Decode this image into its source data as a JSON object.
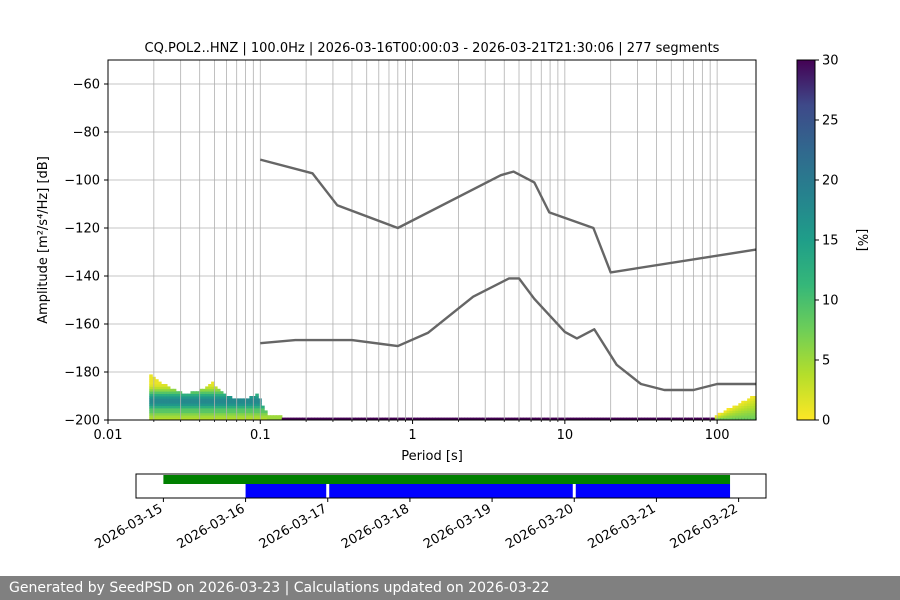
{
  "chart_data": {
    "type": "heatmap",
    "title": "CQ.POL2..HNZ | 100.0Hz | 2026-03-16T00:00:03 - 2026-03-21T21:30:06 | 277 segments",
    "xlabel": "Period [s]",
    "ylabel": "Amplitude [m²/s⁴/Hz] [dB]",
    "x_scale": "log",
    "xlim": [
      0.01,
      180
    ],
    "ylim": [
      -200,
      -50
    ],
    "x_ticks": [
      0.01,
      0.1,
      1,
      10,
      100
    ],
    "x_tick_labels": [
      "0.01",
      "0.1",
      "1",
      "10",
      "100"
    ],
    "y_ticks": [
      -200,
      -180,
      -160,
      -140,
      -120,
      -100,
      -80,
      -60
    ],
    "y_tick_labels": [
      "−200",
      "−180",
      "−160",
      "−140",
      "−120",
      "−100",
      "−80",
      "−60"
    ],
    "grid": "vertical (log-minor period lines) + horizontal at y ticks",
    "colorbar": {
      "label": "[%]",
      "range": [
        0,
        30
      ],
      "ticks": [
        0,
        5,
        10,
        15,
        20,
        25,
        30
      ],
      "colormap": "viridis_r"
    },
    "series": [
      {
        "role": "noise-model-high",
        "color": "#666666",
        "points": [
          [
            0.1,
            -91.5
          ],
          [
            0.22,
            -97.2
          ],
          [
            0.32,
            -110.5
          ],
          [
            0.8,
            -120
          ],
          [
            3.8,
            -98
          ],
          [
            4.6,
            -96.5
          ],
          [
            6.3,
            -101
          ],
          [
            7.9,
            -113.5
          ],
          [
            15.4,
            -120
          ],
          [
            20,
            -138.5
          ],
          [
            180,
            -129
          ]
        ]
      },
      {
        "role": "noise-model-low",
        "color": "#666666",
        "points": [
          [
            0.1,
            -168
          ],
          [
            0.17,
            -166.7
          ],
          [
            0.4,
            -166.7
          ],
          [
            0.8,
            -169.2
          ],
          [
            1.26,
            -163.7
          ],
          [
            2.5,
            -148.6
          ],
          [
            4.3,
            -141
          ],
          [
            5.0,
            -141
          ],
          [
            6.3,
            -149.5
          ],
          [
            10,
            -163.3
          ],
          [
            12,
            -166
          ],
          [
            15.6,
            -162.2
          ],
          [
            21.9,
            -177
          ],
          [
            31.6,
            -185
          ],
          [
            45,
            -187.5
          ],
          [
            70,
            -187.5
          ],
          [
            100,
            -185
          ],
          [
            180,
            -185
          ]
        ]
      }
    ],
    "psd_density": {
      "description": "probability density of PSD values in percent, per period column",
      "bands": [
        {
          "period_range": [
            0.019,
            0.11
          ],
          "amplitude_range": [
            -200,
            -181
          ],
          "peak_percent": 18,
          "peak_near_amplitude": -192
        },
        {
          "period_range": [
            0.11,
            0.14
          ],
          "amplitude_range": [
            -200,
            -198
          ],
          "peak_percent": 5
        },
        {
          "period_range": [
            0.14,
            180
          ],
          "amplitude_range": [
            -200,
            -199
          ],
          "peak_percent": 30
        },
        {
          "period_range": [
            95,
            180
          ],
          "amplitude_range": [
            -200,
            -191
          ],
          "peak_percent": 8
        }
      ]
    },
    "timeline": {
      "type": "timeline",
      "x_ticks": [
        "2026-03-15",
        "2026-03-16",
        "2026-03-17",
        "2026-03-18",
        "2026-03-19",
        "2026-03-20",
        "2026-03-21",
        "2026-03-22"
      ],
      "xlim": [
        "2026-03-14T16:00",
        "2026-03-22T08:00"
      ],
      "data_availability": {
        "color": "#008000",
        "start": "2026-03-15T00:00",
        "end": "2026-03-21T21:30"
      },
      "psd_segments": {
        "color": "#0000ff",
        "start": "2026-03-16T00:00",
        "end": "2026-03-21T21:30",
        "gaps": [
          "2026-03-17T00:00",
          "2026-03-20T00:00"
        ]
      }
    }
  },
  "footer": {
    "text": "Generated by SeedPSD on 2026-03-23 | Calculations updated on 2026-03-22"
  }
}
